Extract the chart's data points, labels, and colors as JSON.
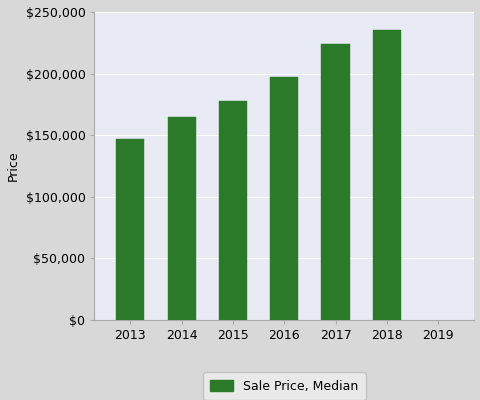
{
  "years": [
    2013,
    2014,
    2015,
    2016,
    2017,
    2018
  ],
  "values": [
    147000,
    165000,
    178000,
    197000,
    224000,
    235000
  ],
  "bar_color": "#2a7a2a",
  "bar_edge_color": "#2a7a2a",
  "plot_bg_color": "#e8eaf4",
  "fig_bg_color": "#d8d8d8",
  "ylabel": "Price",
  "ylim": [
    0,
    250000
  ],
  "yticks": [
    0,
    50000,
    100000,
    150000,
    200000,
    250000
  ],
  "xticks": [
    2013,
    2014,
    2015,
    2016,
    2017,
    2018,
    2019
  ],
  "xlim": [
    2012.3,
    2019.7
  ],
  "legend_label": "Sale Price, Median",
  "bar_width": 0.55
}
